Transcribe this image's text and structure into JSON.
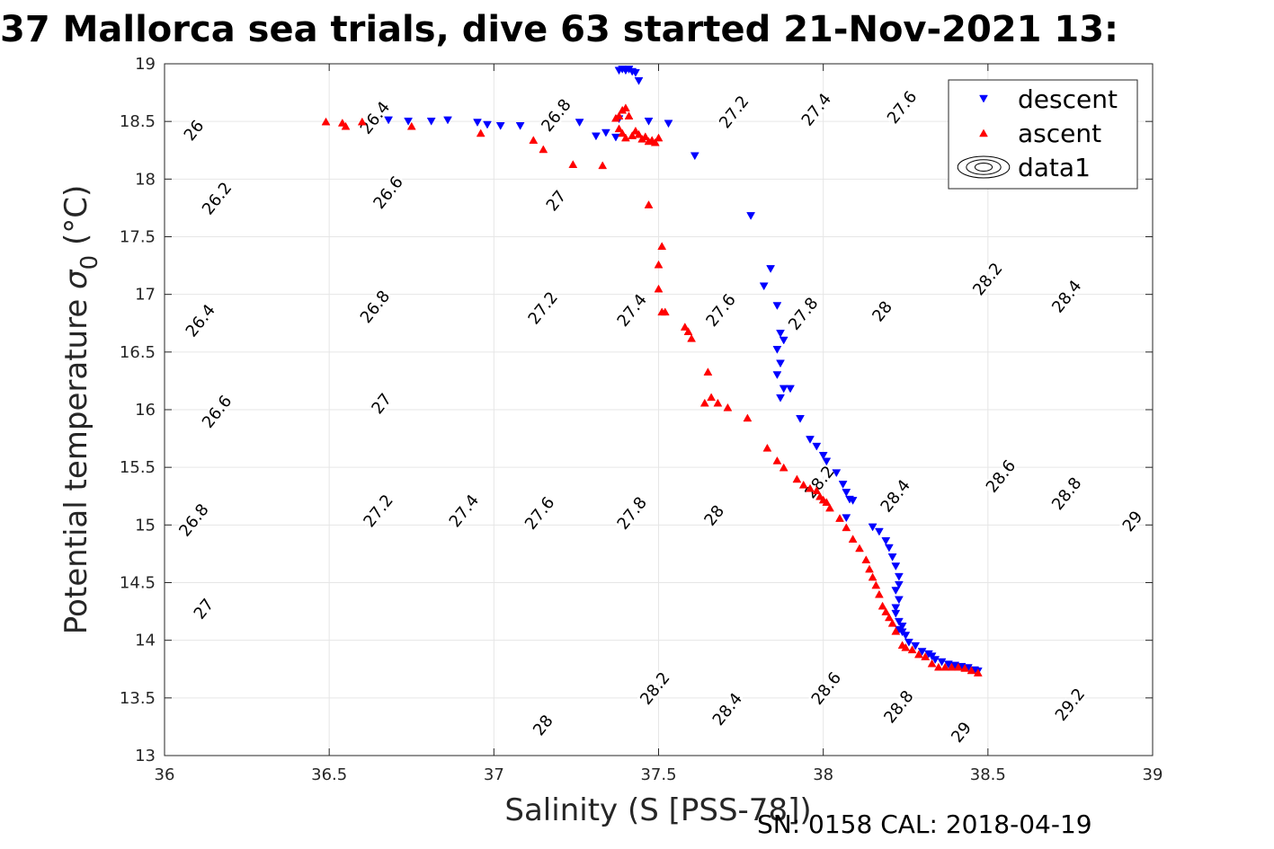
{
  "chart_data": {
    "type": "scatter",
    "title": "37 Mallorca sea trials, dive 63 started 21-Nov-2021 13:",
    "xlabel": "Salinity (S [PSS-78])",
    "ylabel_main": "Potential temperature ",
    "ylabel_sigma": "σ",
    "ylabel_sub": "0",
    "ylabel_unit": " (°C)",
    "xlim": [
      36,
      39
    ],
    "ylim": [
      13,
      19
    ],
    "grid": true,
    "x_ticks": [
      36,
      36.5,
      37,
      37.5,
      38,
      38.5,
      39
    ],
    "x_tick_labels": [
      "36",
      "36.5",
      "37",
      "37.5",
      "38",
      "38.5",
      "39"
    ],
    "y_ticks": [
      13,
      13.5,
      14,
      14.5,
      15,
      15.5,
      16,
      16.5,
      17,
      17.5,
      18,
      18.5,
      19
    ],
    "y_tick_labels": [
      "13",
      "13.5",
      "14",
      "14.5",
      "15",
      "15.5",
      "16",
      "16.5",
      "17",
      "17.5",
      "18",
      "18.5",
      "19"
    ],
    "legend_position": "top-right",
    "legend": [
      {
        "label": "descent",
        "marker": "triangle-down",
        "color": "#0000ff"
      },
      {
        "label": "ascent",
        "marker": "triangle-up",
        "color": "#ff0000"
      },
      {
        "label": "data1",
        "marker": "contour",
        "color": "#000000"
      }
    ],
    "density_contours": {
      "levels": [
        26.0,
        26.2,
        26.4,
        26.6,
        26.8,
        27.0,
        27.2,
        27.4,
        27.6,
        27.8,
        28.0,
        28.2,
        28.4,
        28.6,
        28.8,
        29.0,
        29.2
      ],
      "line_color": "#000000",
      "labels": [
        {
          "text": "26",
          "x": 36.09,
          "y": 18.42
        },
        {
          "text": "26.2",
          "x": 36.16,
          "y": 17.83
        },
        {
          "text": "26.4",
          "x": 36.11,
          "y": 16.77
        },
        {
          "text": "26.6",
          "x": 36.16,
          "y": 15.98
        },
        {
          "text": "26.8",
          "x": 36.09,
          "y": 15.04
        },
        {
          "text": "27",
          "x": 36.12,
          "y": 14.27
        },
        {
          "text": "26.4",
          "x": 36.64,
          "y": 18.53
        },
        {
          "text": "26.6",
          "x": 36.68,
          "y": 17.88
        },
        {
          "text": "26.8",
          "x": 36.64,
          "y": 16.89
        },
        {
          "text": "27",
          "x": 36.66,
          "y": 16.05
        },
        {
          "text": "27.2",
          "x": 36.65,
          "y": 15.12
        },
        {
          "text": "27.4",
          "x": 36.91,
          "y": 15.12
        },
        {
          "text": "26.8",
          "x": 37.19,
          "y": 18.55
        },
        {
          "text": "27",
          "x": 37.19,
          "y": 17.81
        },
        {
          "text": "27.2",
          "x": 37.15,
          "y": 16.88
        },
        {
          "text": "27.6",
          "x": 37.14,
          "y": 15.1
        },
        {
          "text": "27.2",
          "x": 37.73,
          "y": 18.58
        },
        {
          "text": "27.4",
          "x": 37.42,
          "y": 16.86
        },
        {
          "text": "27.6",
          "x": 37.69,
          "y": 16.86
        },
        {
          "text": "27.8",
          "x": 37.42,
          "y": 15.1
        },
        {
          "text": "27.4",
          "x": 37.98,
          "y": 18.6
        },
        {
          "text": "27.8",
          "x": 37.94,
          "y": 16.83
        },
        {
          "text": "28",
          "x": 37.67,
          "y": 15.08
        },
        {
          "text": "27.6",
          "x": 38.24,
          "y": 18.62
        },
        {
          "text": "28",
          "x": 38.18,
          "y": 16.85
        },
        {
          "text": "28.2",
          "x": 37.99,
          "y": 15.37
        },
        {
          "text": "28.4",
          "x": 38.22,
          "y": 15.25
        },
        {
          "text": "28.2",
          "x": 38.5,
          "y": 17.13
        },
        {
          "text": "28.4",
          "x": 38.74,
          "y": 16.98
        },
        {
          "text": "28.6",
          "x": 38.54,
          "y": 15.42
        },
        {
          "text": "28.8",
          "x": 38.74,
          "y": 15.27
        },
        {
          "text": "29",
          "x": 38.94,
          "y": 15.03
        },
        {
          "text": "28",
          "x": 37.15,
          "y": 13.26
        },
        {
          "text": "28.2",
          "x": 37.49,
          "y": 13.58
        },
        {
          "text": "28.4",
          "x": 37.71,
          "y": 13.4
        },
        {
          "text": "28.6",
          "x": 38.01,
          "y": 13.58
        },
        {
          "text": "28.8",
          "x": 38.23,
          "y": 13.42
        },
        {
          "text": "29",
          "x": 38.42,
          "y": 13.2
        },
        {
          "text": "29.2",
          "x": 38.75,
          "y": 13.44
        }
      ]
    },
    "series": [
      {
        "name": "descent",
        "marker": "triangle-down",
        "color": "#0000ff",
        "x": [
          37.38,
          37.39,
          37.4,
          37.41,
          37.42,
          37.43,
          37.44,
          37.38,
          37.47,
          37.53,
          37.34,
          37.37,
          37.31,
          37.26,
          37.08,
          37.02,
          36.98,
          36.95,
          36.86,
          36.81,
          36.74,
          36.68,
          37.61,
          37.78,
          37.84,
          37.82,
          37.86,
          37.87,
          37.88,
          37.86,
          37.87,
          37.86,
          37.88,
          37.9,
          37.87,
          37.93,
          37.96,
          37.98,
          38.0,
          38.01,
          38.04,
          38.06,
          38.07,
          38.08,
          38.09,
          38.07,
          38.15,
          38.17,
          38.19,
          38.2,
          38.21,
          38.22,
          38.23,
          38.23,
          38.22,
          38.23,
          38.22,
          38.22,
          38.23,
          38.24,
          38.23,
          38.24,
          38.25,
          38.26,
          38.28,
          38.3,
          38.32,
          38.33,
          38.34,
          38.36,
          38.38,
          38.4,
          38.42,
          38.44,
          38.46,
          38.47
        ],
        "y": [
          18.94,
          18.95,
          18.94,
          18.95,
          18.93,
          18.92,
          18.85,
          18.52,
          18.5,
          18.48,
          18.4,
          18.36,
          18.37,
          18.49,
          18.46,
          18.46,
          18.47,
          18.49,
          18.51,
          18.5,
          18.5,
          18.51,
          18.2,
          17.68,
          17.22,
          17.07,
          16.9,
          16.66,
          16.6,
          16.52,
          16.4,
          16.3,
          16.18,
          16.18,
          16.1,
          15.92,
          15.74,
          15.68,
          15.6,
          15.55,
          15.45,
          15.35,
          15.28,
          15.22,
          15.21,
          15.06,
          14.98,
          14.94,
          14.86,
          14.8,
          14.72,
          14.64,
          14.55,
          14.48,
          14.43,
          14.35,
          14.28,
          14.23,
          14.16,
          14.12,
          14.09,
          14.07,
          14.04,
          13.98,
          13.95,
          13.9,
          13.88,
          13.86,
          13.83,
          13.81,
          13.79,
          13.78,
          13.77,
          13.76,
          13.74,
          13.73
        ]
      },
      {
        "name": "ascent",
        "marker": "triangle-up",
        "color": "#ff0000",
        "x": [
          36.49,
          36.54,
          36.55,
          36.6,
          36.75,
          36.96,
          37.12,
          37.15,
          37.24,
          37.33,
          37.37,
          37.38,
          37.39,
          37.4,
          37.41,
          37.38,
          37.39,
          37.4,
          37.42,
          37.43,
          37.44,
          37.45,
          37.46,
          37.47,
          37.48,
          37.49,
          37.5,
          37.47,
          37.51,
          37.5,
          37.5,
          37.51,
          37.52,
          37.58,
          37.59,
          37.6,
          37.65,
          37.64,
          37.66,
          37.68,
          37.71,
          37.77,
          37.83,
          37.86,
          37.88,
          37.92,
          37.94,
          37.96,
          37.98,
          37.99,
          38.0,
          38.01,
          38.02,
          38.05,
          38.07,
          38.09,
          38.11,
          38.13,
          38.14,
          38.15,
          38.16,
          38.17,
          38.18,
          38.19,
          38.2,
          38.21,
          38.22,
          38.24,
          38.25,
          38.27,
          38.29,
          38.31,
          38.33,
          38.35,
          38.37,
          38.39,
          38.41,
          38.43,
          38.45,
          38.47
        ],
        "y": [
          18.5,
          18.49,
          18.46,
          18.5,
          18.46,
          18.4,
          18.34,
          18.26,
          18.13,
          18.12,
          18.53,
          18.55,
          18.6,
          18.62,
          18.55,
          18.44,
          18.4,
          18.36,
          18.38,
          18.42,
          18.39,
          18.35,
          18.37,
          18.33,
          18.34,
          18.32,
          18.36,
          17.78,
          17.42,
          17.26,
          17.05,
          16.85,
          16.85,
          16.72,
          16.68,
          16.62,
          16.33,
          16.06,
          16.11,
          16.06,
          16.02,
          15.93,
          15.67,
          15.56,
          15.5,
          15.4,
          15.35,
          15.32,
          15.3,
          15.25,
          15.22,
          15.2,
          15.15,
          15.06,
          14.98,
          14.88,
          14.8,
          14.7,
          14.62,
          14.55,
          14.48,
          14.4,
          14.3,
          14.25,
          14.2,
          14.15,
          14.08,
          13.96,
          13.94,
          13.92,
          13.88,
          13.86,
          13.8,
          13.77,
          13.77,
          13.77,
          13.77,
          13.76,
          13.74,
          13.72
        ]
      }
    ]
  },
  "footer": {
    "text": "SN: 0158  CAL: 2018-04-19"
  }
}
